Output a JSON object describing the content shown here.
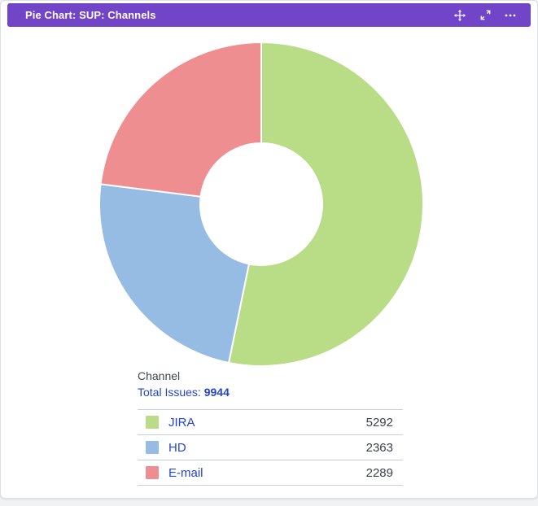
{
  "header": {
    "title": "Pie Chart: SUP: Channels",
    "icons": [
      {
        "name": "move-icon"
      },
      {
        "name": "expand-icon"
      },
      {
        "name": "more-icon"
      }
    ]
  },
  "chart_data": {
    "type": "pie",
    "donut": true,
    "title": "Channel",
    "total_label": "Total Issues:",
    "total_issues": 9944,
    "categories": [
      "JIRA",
      "HD",
      "E-mail"
    ],
    "values": [
      5292,
      2363,
      2289
    ],
    "colors": [
      "#b9dc87",
      "#96bce3",
      "#ef8e90"
    ],
    "start_angle_deg": 0,
    "direction": "clockwise",
    "legend_position": "bottom",
    "legend_values_aligned": "right"
  },
  "colors": {
    "header_bg": "#7144c8",
    "link": "#2545cf",
    "value_text": "#3c4149",
    "table_border": "#c9ced6",
    "card_bg": "#ffffff",
    "page_bg": "#f1f2f4"
  }
}
